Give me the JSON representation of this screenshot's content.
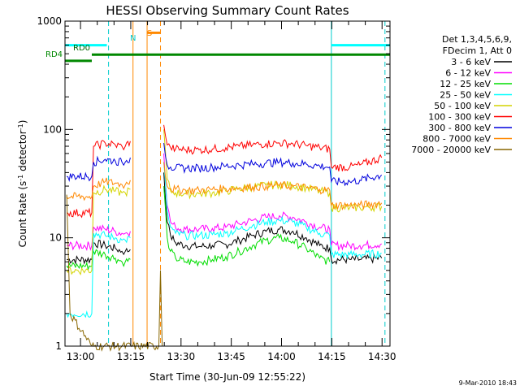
{
  "chart_data": {
    "type": "line",
    "title": "HESSI Observing Summary Count Rates",
    "xlabel": "Start Time (30-Jun-09 12:55:22)",
    "ylabel_prefix": "Count Rate (s",
    "ylabel_sup1": "-1",
    "ylabel_mid": " detector",
    "ylabel_sup2": "-1",
    "ylabel_suffix": ")",
    "yscale": "log",
    "ylim": [
      1,
      1000
    ],
    "xlim_minutes": [
      0,
      97
    ],
    "yticks": [
      {
        "value": 1,
        "label": "1"
      },
      {
        "value": 10,
        "label": "10"
      },
      {
        "value": 100,
        "label": "100"
      },
      {
        "value": 1000,
        "label": "1000"
      }
    ],
    "xticks": [
      {
        "minutes": 4.63,
        "label": "13:00"
      },
      {
        "minutes": 19.63,
        "label": "13:15"
      },
      {
        "minutes": 34.63,
        "label": "13:30"
      },
      {
        "minutes": 49.63,
        "label": "13:45"
      },
      {
        "minutes": 64.63,
        "label": "14:00"
      },
      {
        "minutes": 79.63,
        "label": "14:15"
      },
      {
        "minutes": 94.63,
        "label": "14:30"
      }
    ],
    "legend_header": [
      "Det 1,3,4,5,6,9,",
      "FDecim 1, Att 0"
    ],
    "legend_position": "right",
    "series": [
      {
        "name": "3 - 6 keV",
        "color": "#000000",
        "points": [
          [
            0.5,
            6.3
          ],
          [
            8.0,
            6.3
          ],
          [
            8.5,
            9.0
          ],
          [
            12,
            8.5
          ],
          [
            15,
            8.0
          ],
          [
            17,
            7.5
          ],
          [
            18,
            7.5
          ],
          [
            19.5,
            7.8
          ],
          [
            20,
            null
          ],
          [
            29,
            null
          ],
          [
            29.5,
            40
          ],
          [
            30.5,
            14
          ],
          [
            31.5,
            10.5
          ],
          [
            33,
            9.0
          ],
          [
            36,
            8.5
          ],
          [
            40,
            8.3
          ],
          [
            44,
            8.5
          ],
          [
            48,
            8.7
          ],
          [
            52,
            9.5
          ],
          [
            56,
            10.5
          ],
          [
            60,
            11.5
          ],
          [
            64,
            12.0
          ],
          [
            68,
            11.5
          ],
          [
            72,
            10.0
          ],
          [
            76,
            8.5
          ],
          [
            79,
            8.0
          ],
          [
            79.5,
            6.3
          ],
          [
            85,
            6.3
          ],
          [
            88,
            6.3
          ],
          [
            94.5,
            6.5
          ]
        ]
      },
      {
        "name": "6 - 12 keV",
        "color": "#ff00ff",
        "points": [
          [
            0.5,
            8.5
          ],
          [
            8.0,
            8.5
          ],
          [
            8.5,
            12.5
          ],
          [
            12,
            12.0
          ],
          [
            15,
            11.5
          ],
          [
            17,
            11.0
          ],
          [
            18,
            11.0
          ],
          [
            19.5,
            11.5
          ],
          [
            20,
            null
          ],
          [
            29,
            null
          ],
          [
            29.5,
            60
          ],
          [
            30.5,
            20
          ],
          [
            31.5,
            14
          ],
          [
            33,
            12.5
          ],
          [
            36,
            12.0
          ],
          [
            40,
            12.0
          ],
          [
            44,
            12.2
          ],
          [
            48,
            12.5
          ],
          [
            52,
            13.5
          ],
          [
            56,
            14.5
          ],
          [
            60,
            15.5
          ],
          [
            64,
            16.0
          ],
          [
            68,
            15.5
          ],
          [
            72,
            14.0
          ],
          [
            76,
            12.5
          ],
          [
            79,
            12.0
          ],
          [
            79.5,
            8.5
          ],
          [
            85,
            8.5
          ],
          [
            88,
            8.5
          ],
          [
            94.5,
            8.8
          ]
        ]
      },
      {
        "name": "12 - 25 keV",
        "color": "#00dd00",
        "points": [
          [
            0.5,
            5.5
          ],
          [
            8.0,
            5.5
          ],
          [
            8.5,
            7.5
          ],
          [
            12,
            7.0
          ],
          [
            15,
            6.5
          ],
          [
            17,
            6.0
          ],
          [
            18,
            6.0
          ],
          [
            19.5,
            6.3
          ],
          [
            20,
            null
          ],
          [
            29,
            null
          ],
          [
            29.5,
            30
          ],
          [
            30.5,
            10
          ],
          [
            31.5,
            7.5
          ],
          [
            33,
            6.5
          ],
          [
            36,
            6.0
          ],
          [
            40,
            6.0
          ],
          [
            44,
            6.3
          ],
          [
            48,
            6.7
          ],
          [
            52,
            7.5
          ],
          [
            56,
            8.5
          ],
          [
            60,
            9.5
          ],
          [
            64,
            10.0
          ],
          [
            68,
            9.3
          ],
          [
            72,
            8.0
          ],
          [
            76,
            6.5
          ],
          [
            79,
            6.0
          ],
          [
            79.5,
            null
          ]
        ]
      },
      {
        "name": "25 - 50 keV",
        "color": "#00ffff",
        "points": [
          [
            0.5,
            2.0
          ],
          [
            8.0,
            2.0
          ],
          [
            8.5,
            11.0
          ],
          [
            12,
            10.5
          ],
          [
            15,
            10.0
          ],
          [
            17,
            9.5
          ],
          [
            18,
            9.5
          ],
          [
            19.5,
            10.0
          ],
          [
            20,
            null
          ],
          [
            29,
            null
          ],
          [
            29.5,
            50
          ],
          [
            30.5,
            18
          ],
          [
            31.5,
            12.5
          ],
          [
            33,
            11.0
          ],
          [
            36,
            10.5
          ],
          [
            40,
            10.5
          ],
          [
            44,
            10.7
          ],
          [
            48,
            11.0
          ],
          [
            52,
            12.0
          ],
          [
            56,
            13.0
          ],
          [
            60,
            14.0
          ],
          [
            64,
            14.5
          ],
          [
            68,
            14.0
          ],
          [
            72,
            12.5
          ],
          [
            76,
            11.0
          ],
          [
            79,
            10.5
          ],
          [
            79.5,
            7.0
          ],
          [
            85,
            7.0
          ],
          [
            88,
            7.0
          ],
          [
            94.5,
            7.2
          ]
        ]
      },
      {
        "name": "50 - 100 keV",
        "color": "#d4d400",
        "points": [
          [
            0.5,
            5.0
          ],
          [
            8.0,
            5.0
          ],
          [
            8.5,
            26
          ],
          [
            12,
            28
          ],
          [
            15,
            27
          ],
          [
            17,
            26
          ],
          [
            18,
            26
          ],
          [
            19.5,
            28
          ],
          [
            20,
            null
          ],
          [
            29,
            null
          ],
          [
            29.5,
            100
          ],
          [
            30.5,
            35
          ],
          [
            31.5,
            27
          ],
          [
            33,
            26
          ],
          [
            36,
            25.5
          ],
          [
            40,
            25.5
          ],
          [
            44,
            26
          ],
          [
            48,
            27
          ],
          [
            52,
            28.5
          ],
          [
            56,
            29.5
          ],
          [
            60,
            30.5
          ],
          [
            64,
            31
          ],
          [
            68,
            30.5
          ],
          [
            72,
            29
          ],
          [
            76,
            27
          ],
          [
            79,
            26
          ],
          [
            79.5,
            19
          ],
          [
            85,
            19
          ],
          [
            88,
            19
          ],
          [
            94.5,
            19.5
          ]
        ]
      },
      {
        "name": "100 - 300 keV",
        "color": "#ff0000",
        "points": [
          [
            0.5,
            17
          ],
          [
            8.0,
            17
          ],
          [
            8.5,
            70
          ],
          [
            12,
            75
          ],
          [
            15,
            72
          ],
          [
            17,
            70
          ],
          [
            18,
            70
          ],
          [
            19.5,
            78
          ],
          [
            20,
            null
          ],
          [
            29,
            null
          ],
          [
            29.5,
            110
          ],
          [
            30.5,
            72
          ],
          [
            31.5,
            68
          ],
          [
            33,
            66
          ],
          [
            36,
            65
          ],
          [
            40,
            65
          ],
          [
            44,
            66
          ],
          [
            48,
            68
          ],
          [
            52,
            70
          ],
          [
            56,
            72
          ],
          [
            60,
            74
          ],
          [
            64,
            75
          ],
          [
            68,
            74
          ],
          [
            72,
            71
          ],
          [
            76,
            68
          ],
          [
            79,
            66
          ],
          [
            79.5,
            45
          ],
          [
            85,
            45
          ],
          [
            88,
            47
          ],
          [
            94.5,
            55
          ]
        ]
      },
      {
        "name": "300 - 800 keV",
        "color": "#0000dd",
        "points": [
          [
            0.5,
            37
          ],
          [
            8.0,
            37
          ],
          [
            8.5,
            50
          ],
          [
            12,
            53
          ],
          [
            15,
            51
          ],
          [
            17,
            50
          ],
          [
            18,
            50
          ],
          [
            19.5,
            55
          ],
          [
            20,
            null
          ],
          [
            29,
            null
          ],
          [
            29.5,
            75
          ],
          [
            30.5,
            47
          ],
          [
            31.5,
            45
          ],
          [
            33,
            44
          ],
          [
            36,
            44
          ],
          [
            40,
            44
          ],
          [
            44,
            45
          ],
          [
            48,
            46
          ],
          [
            52,
            47
          ],
          [
            56,
            48
          ],
          [
            60,
            49
          ],
          [
            64,
            50
          ],
          [
            68,
            49
          ],
          [
            72,
            48
          ],
          [
            76,
            46
          ],
          [
            79,
            45
          ],
          [
            79.5,
            33
          ],
          [
            85,
            33
          ],
          [
            88,
            34
          ],
          [
            94.5,
            38
          ]
        ]
      },
      {
        "name": "800 - 7000 keV",
        "color": "#ff8800",
        "points": [
          [
            0.5,
            24
          ],
          [
            8.0,
            24
          ],
          [
            8.5,
            30
          ],
          [
            12,
            33
          ],
          [
            15,
            32
          ],
          [
            17,
            31
          ],
          [
            18,
            31
          ],
          [
            19.5,
            34
          ],
          [
            20,
            null
          ],
          [
            29,
            null
          ],
          [
            29.5,
            50
          ],
          [
            30.5,
            30
          ],
          [
            31.5,
            28.5
          ],
          [
            33,
            28
          ],
          [
            36,
            27.5
          ],
          [
            40,
            27.5
          ],
          [
            44,
            28
          ],
          [
            48,
            28.5
          ],
          [
            52,
            29
          ],
          [
            56,
            29.5
          ],
          [
            60,
            30
          ],
          [
            64,
            30.5
          ],
          [
            68,
            30
          ],
          [
            72,
            29
          ],
          [
            76,
            28
          ],
          [
            79,
            27.5
          ],
          [
            79.5,
            20
          ],
          [
            85,
            20
          ],
          [
            88,
            20
          ],
          [
            94.5,
            21
          ]
        ]
      },
      {
        "name": "7000 - 20000 keV",
        "color": "#886600",
        "points": [
          [
            0.5,
            25
          ],
          [
            1.5,
            2
          ],
          [
            8.0,
            1
          ],
          [
            28,
            1
          ],
          [
            28.5,
            5
          ],
          [
            29,
            1
          ]
        ]
      }
    ],
    "annotations": [
      {
        "label": "RD0",
        "color": "#006600"
      },
      {
        "label": "RD4",
        "color": "#008800"
      },
      {
        "label": "N",
        "color": "#00cccc"
      },
      {
        "label": "S",
        "color": "#ff8800"
      }
    ],
    "state_bars": [
      {
        "name": "night",
        "color": "#00ffff",
        "y": 600,
        "start": 0,
        "end": 12.5
      },
      {
        "name": "night",
        "color": "#00ffff",
        "y": 600,
        "start": 79.5,
        "end": 97
      },
      {
        "name": "saa",
        "color": "#ff8800",
        "y": 780,
        "start": 24.5,
        "end": 28.5
      },
      {
        "name": "RD0",
        "color": "#008800",
        "y": 490,
        "start": 8.0,
        "end": 97
      },
      {
        "name": "RD4",
        "color": "#008800",
        "y": 430,
        "start": 0,
        "end": 8.0
      }
    ],
    "vertical_lines": [
      {
        "minutes": 13.0,
        "color": "#00cccc",
        "style": "dashed"
      },
      {
        "minutes": 79.5,
        "color": "#00cccc",
        "style": "solid"
      },
      {
        "minutes": 95.5,
        "color": "#00cccc",
        "style": "dashed"
      },
      {
        "minutes": 20.3,
        "color": "#ff8800",
        "style": "solid"
      },
      {
        "minutes": 24.5,
        "color": "#ff8800",
        "style": "solid"
      },
      {
        "minutes": 28.5,
        "color": "#ff8800",
        "style": "dashed"
      }
    ],
    "grid": false
  },
  "footer": {
    "timestamp": "9-Mar-2010 18:43"
  }
}
